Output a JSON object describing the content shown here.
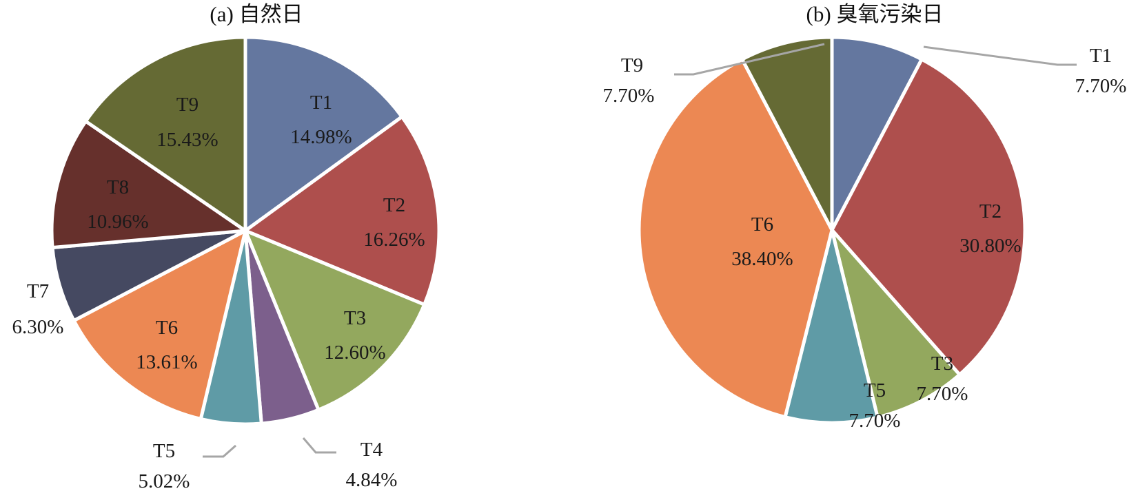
{
  "chart_data": [
    {
      "type": "pie",
      "title": "(a) 自然日",
      "start_angle_deg": 0,
      "direction": "clockwise",
      "slices": [
        {
          "label": "T1",
          "value": 14.98,
          "pct": "14.98%",
          "color": "#64779f"
        },
        {
          "label": "T2",
          "value": 16.26,
          "pct": "16.26%",
          "color": "#ae4f4d"
        },
        {
          "label": "T3",
          "value": 12.6,
          "pct": "12.60%",
          "color": "#93a85e"
        },
        {
          "label": "T4",
          "value": 4.84,
          "pct": "4.84%",
          "color": "#7c5f8c"
        },
        {
          "label": "T5",
          "value": 5.02,
          "pct": "5.02%",
          "color": "#5f9ba6"
        },
        {
          "label": "T6",
          "value": 13.61,
          "pct": "13.61%",
          "color": "#ec8853"
        },
        {
          "label": "T7",
          "value": 6.3,
          "pct": "6.30%",
          "color": "#454961"
        },
        {
          "label": "T8",
          "value": 10.96,
          "pct": "10.96%",
          "color": "#66302c"
        },
        {
          "label": "T9",
          "value": 15.43,
          "pct": "15.43%",
          "color": "#656a34"
        }
      ]
    },
    {
      "type": "pie",
      "title": "(b) 臭氧污染日",
      "start_angle_deg": 0,
      "direction": "clockwise",
      "slices": [
        {
          "label": "T1",
          "value": 7.7,
          "pct": "7.70%",
          "color": "#64779f"
        },
        {
          "label": "T2",
          "value": 30.8,
          "pct": "30.80%",
          "color": "#ae4f4d"
        },
        {
          "label": "T3",
          "value": 7.7,
          "pct": "7.70%",
          "color": "#93a85e"
        },
        {
          "label": "T5",
          "value": 7.7,
          "pct": "7.70%",
          "color": "#5f9ba6"
        },
        {
          "label": "T6",
          "value": 38.4,
          "pct": "38.40%",
          "color": "#ec8853"
        },
        {
          "label": "T9",
          "value": 7.7,
          "pct": "7.70%",
          "color": "#656a34"
        }
      ]
    }
  ]
}
